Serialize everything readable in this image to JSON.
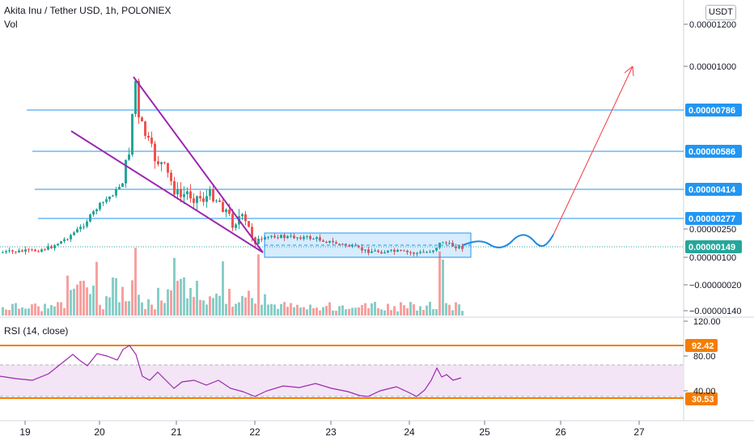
{
  "header": {
    "title": "Akita Inu / Tether USD, 1h, POLONIEX",
    "vol_label": "Vol",
    "currency_button": "USDT"
  },
  "rsi": {
    "title": "RSI (14, close)",
    "upper_line_label": "92.42",
    "lower_line_label": "30.53",
    "axis_ticks": [
      "120.00",
      "80.00",
      "40.00"
    ],
    "line_color": "#9c27b0",
    "band_color": "#f3e5f5"
  },
  "colors": {
    "up": "#26a69a",
    "down": "#ef5350",
    "level_line": "#2196f3",
    "wedge": "#9c27b0",
    "projection_wave": "#1e88e5",
    "projection_arrow": "#f23645",
    "rsi_level": "#f57c00"
  },
  "chart_data": {
    "type": "candlestick",
    "title": "Akita Inu / Tether USD, 1h, POLONIEX",
    "price_axis_ticks": [
      "0.00001200",
      "0.00001000",
      "0.00000250",
      "0.00000100",
      "-0.00000020",
      "-0.00000140"
    ],
    "x_ticks": [
      "19",
      "20",
      "21",
      "22",
      "23",
      "24",
      "25",
      "26",
      "27"
    ],
    "horizontal_levels": [
      {
        "label": "0.00000786"
      },
      {
        "label": "0.00000586"
      },
      {
        "label": "0.00000414"
      },
      {
        "label": "0.00000277"
      }
    ],
    "last_price_label": "0.00000149",
    "annotations": [
      "descending wedge",
      "consolidation box",
      "projected breakout wave",
      "upward arrow"
    ]
  }
}
